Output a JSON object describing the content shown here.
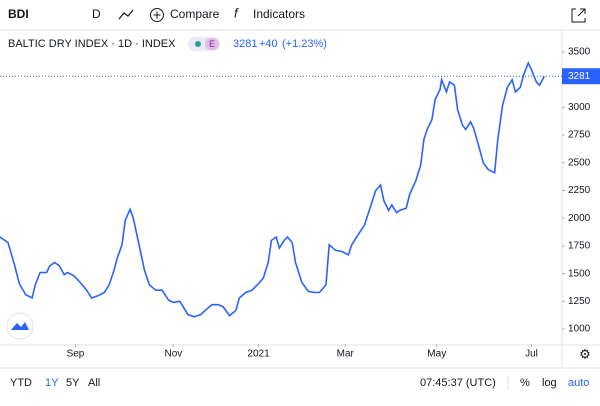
{
  "toolbar": {
    "symbol": "BDI",
    "interval": "D",
    "compare": "Compare",
    "indicators": "Indicators"
  },
  "chart_data": {
    "type": "line",
    "title": "BALTIC DRY INDEX · 1D · INDEX",
    "badge": "E",
    "last": {
      "value": 3281,
      "change": "+40",
      "change_pct": "(+1.23%)"
    },
    "xlim": [
      0,
      350
    ],
    "xticks": [
      {
        "value": 47,
        "label": "Sep"
      },
      {
        "value": 108,
        "label": "Nov"
      },
      {
        "value": 161,
        "label": "2021"
      },
      {
        "value": 215,
        "label": "Mar"
      },
      {
        "value": 272,
        "label": "May"
      },
      {
        "value": 331,
        "label": "Jul"
      }
    ],
    "ylim": [
      865,
      3662
    ],
    "yticks": [
      1000,
      1250,
      1500,
      1750,
      2000,
      2250,
      2500,
      2750,
      3000,
      3250,
      3500
    ],
    "series": [
      {
        "name": "BDI",
        "color": "#2962ff",
        "x": [
          0,
          5,
          9,
          12,
          16,
          20,
          22,
          25,
          29,
          31,
          34,
          37,
          40,
          42,
          46,
          50,
          54,
          57,
          61,
          65,
          68,
          71,
          73,
          76,
          78,
          81,
          83,
          86,
          90,
          93,
          97,
          101,
          105,
          108,
          112,
          117,
          121,
          125,
          128,
          132,
          136,
          139,
          143,
          147,
          149,
          153,
          157,
          161,
          164,
          167,
          169,
          172,
          174,
          177,
          179,
          182,
          184,
          188,
          192,
          196,
          199,
          203,
          205,
          209,
          213,
          217,
          219,
          223,
          227,
          230,
          234,
          237,
          239,
          242,
          244,
          247,
          249,
          253,
          255,
          259,
          262,
          264,
          266,
          269,
          271,
          274,
          275,
          278,
          280,
          283,
          285,
          288,
          290,
          293,
          295,
          298,
          301,
          304,
          308,
          310,
          313,
          316,
          319,
          321,
          324,
          326,
          329,
          331,
          334,
          336,
          339
        ],
        "values": [
          1830,
          1780,
          1580,
          1410,
          1310,
          1280,
          1400,
          1510,
          1510,
          1570,
          1600,
          1570,
          1490,
          1510,
          1480,
          1420,
          1350,
          1280,
          1300,
          1330,
          1400,
          1530,
          1640,
          1760,
          1980,
          2080,
          2000,
          1800,
          1530,
          1400,
          1350,
          1350,
          1260,
          1240,
          1250,
          1130,
          1110,
          1130,
          1170,
          1220,
          1220,
          1200,
          1120,
          1170,
          1280,
          1330,
          1350,
          1410,
          1460,
          1600,
          1800,
          1830,
          1730,
          1800,
          1830,
          1780,
          1600,
          1420,
          1340,
          1330,
          1330,
          1400,
          1760,
          1710,
          1700,
          1670,
          1760,
          1850,
          1940,
          2070,
          2250,
          2300,
          2160,
          2070,
          2120,
          2050,
          2070,
          2090,
          2210,
          2340,
          2480,
          2710,
          2800,
          2890,
          3070,
          3160,
          3250,
          3140,
          3230,
          3200,
          2980,
          2840,
          2800,
          2870,
          2810,
          2660,
          2500,
          2440,
          2410,
          2710,
          3020,
          3180,
          3250,
          3140,
          3180,
          3290,
          3400,
          3340,
          3230,
          3200,
          3281
        ]
      }
    ]
  },
  "footer": {
    "ranges": [
      "YTD",
      "1Y",
      "5Y",
      "All"
    ],
    "time": "07:45:37 (UTC)",
    "percent": "%",
    "log": "log",
    "auto": "auto"
  }
}
